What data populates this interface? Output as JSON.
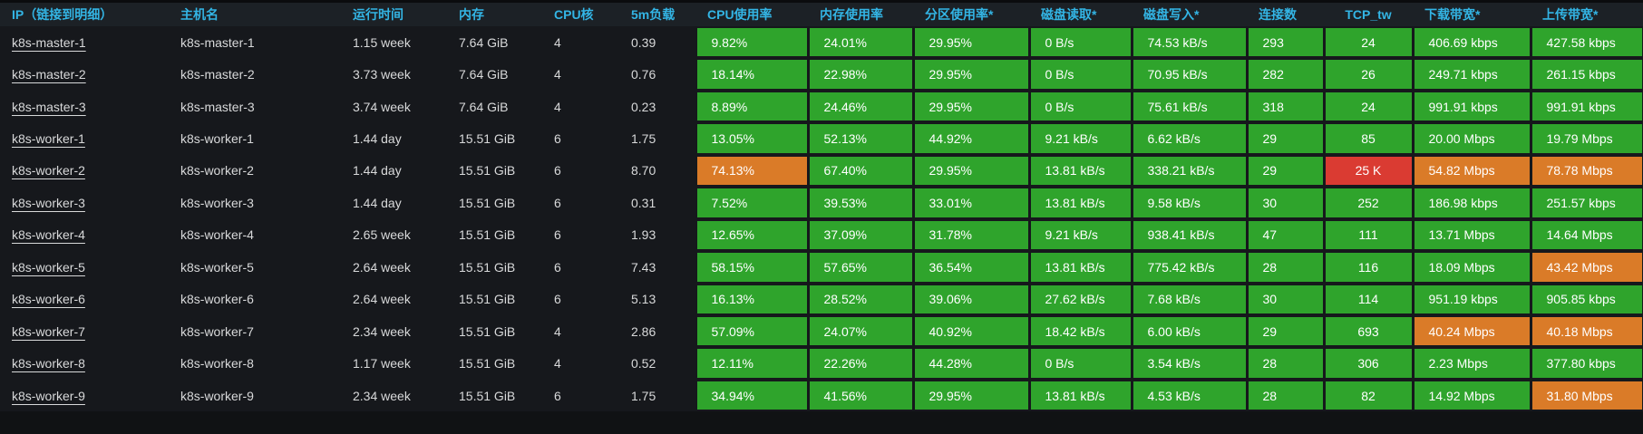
{
  "colors": {
    "header_text": "#33b5e5",
    "status_green": "#2fa42c",
    "status_orange": "#da7b28",
    "status_red": "#da3b32",
    "header_background": "#1c2126",
    "row_background": "#16181c",
    "plain_text": "#d8d9da"
  },
  "table": {
    "columns": [
      {
        "key": "ip",
        "label": "IP（链接到明细）",
        "colored": false
      },
      {
        "key": "hostname",
        "label": "主机名",
        "colored": false
      },
      {
        "key": "uptime",
        "label": "运行时间",
        "colored": false
      },
      {
        "key": "memory",
        "label": "内存",
        "colored": false
      },
      {
        "key": "cpu_cores",
        "label": "CPU核",
        "colored": false
      },
      {
        "key": "load_5m",
        "label": "5m负载",
        "colored": false
      },
      {
        "key": "cpu_usage",
        "label": "CPU使用率",
        "colored": true
      },
      {
        "key": "mem_usage",
        "label": "内存使用率",
        "colored": true
      },
      {
        "key": "partition_usage",
        "label": "分区使用率*",
        "colored": true
      },
      {
        "key": "disk_read",
        "label": "磁盘读取*",
        "colored": true
      },
      {
        "key": "disk_write",
        "label": "磁盘写入*",
        "colored": true
      },
      {
        "key": "connections",
        "label": "连接数",
        "colored": true
      },
      {
        "key": "tcp_tw",
        "label": "TCP_tw",
        "colored": true,
        "align": "center"
      },
      {
        "key": "download_bw",
        "label": "下载带宽*",
        "colored": true
      },
      {
        "key": "upload_bw",
        "label": "上传带宽*",
        "colored": true
      }
    ],
    "rows": [
      {
        "ip": "k8s-master-1",
        "hostname": "k8s-master-1",
        "uptime": "1.15 week",
        "memory": "7.64 GiB",
        "cpu_cores": "4",
        "load_5m": "0.39",
        "cpu_usage": {
          "v": "9.82%",
          "s": "green"
        },
        "mem_usage": {
          "v": "24.01%",
          "s": "green"
        },
        "partition_usage": {
          "v": "29.95%",
          "s": "green"
        },
        "disk_read": {
          "v": "0 B/s",
          "s": "green"
        },
        "disk_write": {
          "v": "74.53 kB/s",
          "s": "green"
        },
        "connections": {
          "v": "293",
          "s": "green"
        },
        "tcp_tw": {
          "v": "24",
          "s": "green"
        },
        "download_bw": {
          "v": "406.69 kbps",
          "s": "green"
        },
        "upload_bw": {
          "v": "427.58 kbps",
          "s": "green"
        }
      },
      {
        "ip": "k8s-master-2",
        "hostname": "k8s-master-2",
        "uptime": "3.73 week",
        "memory": "7.64 GiB",
        "cpu_cores": "4",
        "load_5m": "0.76",
        "cpu_usage": {
          "v": "18.14%",
          "s": "green"
        },
        "mem_usage": {
          "v": "22.98%",
          "s": "green"
        },
        "partition_usage": {
          "v": "29.95%",
          "s": "green"
        },
        "disk_read": {
          "v": "0 B/s",
          "s": "green"
        },
        "disk_write": {
          "v": "70.95 kB/s",
          "s": "green"
        },
        "connections": {
          "v": "282",
          "s": "green"
        },
        "tcp_tw": {
          "v": "26",
          "s": "green"
        },
        "download_bw": {
          "v": "249.71 kbps",
          "s": "green"
        },
        "upload_bw": {
          "v": "261.15 kbps",
          "s": "green"
        }
      },
      {
        "ip": "k8s-master-3",
        "hostname": "k8s-master-3",
        "uptime": "3.74 week",
        "memory": "7.64 GiB",
        "cpu_cores": "4",
        "load_5m": "0.23",
        "cpu_usage": {
          "v": "8.89%",
          "s": "green"
        },
        "mem_usage": {
          "v": "24.46%",
          "s": "green"
        },
        "partition_usage": {
          "v": "29.95%",
          "s": "green"
        },
        "disk_read": {
          "v": "0 B/s",
          "s": "green"
        },
        "disk_write": {
          "v": "75.61 kB/s",
          "s": "green"
        },
        "connections": {
          "v": "318",
          "s": "green"
        },
        "tcp_tw": {
          "v": "24",
          "s": "green"
        },
        "download_bw": {
          "v": "991.91 kbps",
          "s": "green"
        },
        "upload_bw": {
          "v": "991.91 kbps",
          "s": "green"
        }
      },
      {
        "ip": "k8s-worker-1",
        "hostname": "k8s-worker-1",
        "uptime": "1.44 day",
        "memory": "15.51 GiB",
        "cpu_cores": "6",
        "load_5m": "1.75",
        "cpu_usage": {
          "v": "13.05%",
          "s": "green"
        },
        "mem_usage": {
          "v": "52.13%",
          "s": "green"
        },
        "partition_usage": {
          "v": "44.92%",
          "s": "green"
        },
        "disk_read": {
          "v": "9.21 kB/s",
          "s": "green"
        },
        "disk_write": {
          "v": "6.62 kB/s",
          "s": "green"
        },
        "connections": {
          "v": "29",
          "s": "green"
        },
        "tcp_tw": {
          "v": "85",
          "s": "green"
        },
        "download_bw": {
          "v": "20.00 Mbps",
          "s": "green"
        },
        "upload_bw": {
          "v": "19.79 Mbps",
          "s": "green"
        }
      },
      {
        "ip": "k8s-worker-2",
        "hostname": "k8s-worker-2",
        "uptime": "1.44 day",
        "memory": "15.51 GiB",
        "cpu_cores": "6",
        "load_5m": "8.70",
        "cpu_usage": {
          "v": "74.13%",
          "s": "orange"
        },
        "mem_usage": {
          "v": "67.40%",
          "s": "green"
        },
        "partition_usage": {
          "v": "29.95%",
          "s": "green"
        },
        "disk_read": {
          "v": "13.81 kB/s",
          "s": "green"
        },
        "disk_write": {
          "v": "338.21 kB/s",
          "s": "green"
        },
        "connections": {
          "v": "29",
          "s": "green"
        },
        "tcp_tw": {
          "v": "25 K",
          "s": "red"
        },
        "download_bw": {
          "v": "54.82 Mbps",
          "s": "orange"
        },
        "upload_bw": {
          "v": "78.78 Mbps",
          "s": "orange"
        }
      },
      {
        "ip": "k8s-worker-3",
        "hostname": "k8s-worker-3",
        "uptime": "1.44 day",
        "memory": "15.51 GiB",
        "cpu_cores": "6",
        "load_5m": "0.31",
        "cpu_usage": {
          "v": "7.52%",
          "s": "green"
        },
        "mem_usage": {
          "v": "39.53%",
          "s": "green"
        },
        "partition_usage": {
          "v": "33.01%",
          "s": "green"
        },
        "disk_read": {
          "v": "13.81 kB/s",
          "s": "green"
        },
        "disk_write": {
          "v": "9.58 kB/s",
          "s": "green"
        },
        "connections": {
          "v": "30",
          "s": "green"
        },
        "tcp_tw": {
          "v": "252",
          "s": "green"
        },
        "download_bw": {
          "v": "186.98 kbps",
          "s": "green"
        },
        "upload_bw": {
          "v": "251.57 kbps",
          "s": "green"
        }
      },
      {
        "ip": "k8s-worker-4",
        "hostname": "k8s-worker-4",
        "uptime": "2.65 week",
        "memory": "15.51 GiB",
        "cpu_cores": "6",
        "load_5m": "1.93",
        "cpu_usage": {
          "v": "12.65%",
          "s": "green"
        },
        "mem_usage": {
          "v": "37.09%",
          "s": "green"
        },
        "partition_usage": {
          "v": "31.78%",
          "s": "green"
        },
        "disk_read": {
          "v": "9.21 kB/s",
          "s": "green"
        },
        "disk_write": {
          "v": "938.41 kB/s",
          "s": "green"
        },
        "connections": {
          "v": "47",
          "s": "green"
        },
        "tcp_tw": {
          "v": "111",
          "s": "green"
        },
        "download_bw": {
          "v": "13.71 Mbps",
          "s": "green"
        },
        "upload_bw": {
          "v": "14.64 Mbps",
          "s": "green"
        }
      },
      {
        "ip": "k8s-worker-5",
        "hostname": "k8s-worker-5",
        "uptime": "2.64 week",
        "memory": "15.51 GiB",
        "cpu_cores": "6",
        "load_5m": "7.43",
        "cpu_usage": {
          "v": "58.15%",
          "s": "green"
        },
        "mem_usage": {
          "v": "57.65%",
          "s": "green"
        },
        "partition_usage": {
          "v": "36.54%",
          "s": "green"
        },
        "disk_read": {
          "v": "13.81 kB/s",
          "s": "green"
        },
        "disk_write": {
          "v": "775.42 kB/s",
          "s": "green"
        },
        "connections": {
          "v": "28",
          "s": "green"
        },
        "tcp_tw": {
          "v": "116",
          "s": "green"
        },
        "download_bw": {
          "v": "18.09 Mbps",
          "s": "green"
        },
        "upload_bw": {
          "v": "43.42 Mbps",
          "s": "orange"
        }
      },
      {
        "ip": "k8s-worker-6",
        "hostname": "k8s-worker-6",
        "uptime": "2.64 week",
        "memory": "15.51 GiB",
        "cpu_cores": "6",
        "load_5m": "5.13",
        "cpu_usage": {
          "v": "16.13%",
          "s": "green"
        },
        "mem_usage": {
          "v": "28.52%",
          "s": "green"
        },
        "partition_usage": {
          "v": "39.06%",
          "s": "green"
        },
        "disk_read": {
          "v": "27.62 kB/s",
          "s": "green"
        },
        "disk_write": {
          "v": "7.68 kB/s",
          "s": "green"
        },
        "connections": {
          "v": "30",
          "s": "green"
        },
        "tcp_tw": {
          "v": "114",
          "s": "green"
        },
        "download_bw": {
          "v": "951.19 kbps",
          "s": "green"
        },
        "upload_bw": {
          "v": "905.85 kbps",
          "s": "green"
        }
      },
      {
        "ip": "k8s-worker-7",
        "hostname": "k8s-worker-7",
        "uptime": "2.34 week",
        "memory": "15.51 GiB",
        "cpu_cores": "4",
        "load_5m": "2.86",
        "cpu_usage": {
          "v": "57.09%",
          "s": "green"
        },
        "mem_usage": {
          "v": "24.07%",
          "s": "green"
        },
        "partition_usage": {
          "v": "40.92%",
          "s": "green"
        },
        "disk_read": {
          "v": "18.42 kB/s",
          "s": "green"
        },
        "disk_write": {
          "v": "6.00 kB/s",
          "s": "green"
        },
        "connections": {
          "v": "29",
          "s": "green"
        },
        "tcp_tw": {
          "v": "693",
          "s": "green"
        },
        "download_bw": {
          "v": "40.24 Mbps",
          "s": "orange"
        },
        "upload_bw": {
          "v": "40.18 Mbps",
          "s": "orange"
        }
      },
      {
        "ip": "k8s-worker-8",
        "hostname": "k8s-worker-8",
        "uptime": "1.17 week",
        "memory": "15.51 GiB",
        "cpu_cores": "4",
        "load_5m": "0.52",
        "cpu_usage": {
          "v": "12.11%",
          "s": "green"
        },
        "mem_usage": {
          "v": "22.26%",
          "s": "green"
        },
        "partition_usage": {
          "v": "44.28%",
          "s": "green"
        },
        "disk_read": {
          "v": "0 B/s",
          "s": "green"
        },
        "disk_write": {
          "v": "3.54 kB/s",
          "s": "green"
        },
        "connections": {
          "v": "28",
          "s": "green"
        },
        "tcp_tw": {
          "v": "306",
          "s": "green"
        },
        "download_bw": {
          "v": "2.23 Mbps",
          "s": "green"
        },
        "upload_bw": {
          "v": "377.80 kbps",
          "s": "green"
        }
      },
      {
        "ip": "k8s-worker-9",
        "hostname": "k8s-worker-9",
        "uptime": "2.34 week",
        "memory": "15.51 GiB",
        "cpu_cores": "6",
        "load_5m": "1.75",
        "cpu_usage": {
          "v": "34.94%",
          "s": "green"
        },
        "mem_usage": {
          "v": "41.56%",
          "s": "green"
        },
        "partition_usage": {
          "v": "29.95%",
          "s": "green"
        },
        "disk_read": {
          "v": "13.81 kB/s",
          "s": "green"
        },
        "disk_write": {
          "v": "4.53 kB/s",
          "s": "green"
        },
        "connections": {
          "v": "28",
          "s": "green"
        },
        "tcp_tw": {
          "v": "82",
          "s": "green"
        },
        "download_bw": {
          "v": "14.92 Mbps",
          "s": "green"
        },
        "upload_bw": {
          "v": "31.80 Mbps",
          "s": "orange"
        }
      }
    ]
  }
}
